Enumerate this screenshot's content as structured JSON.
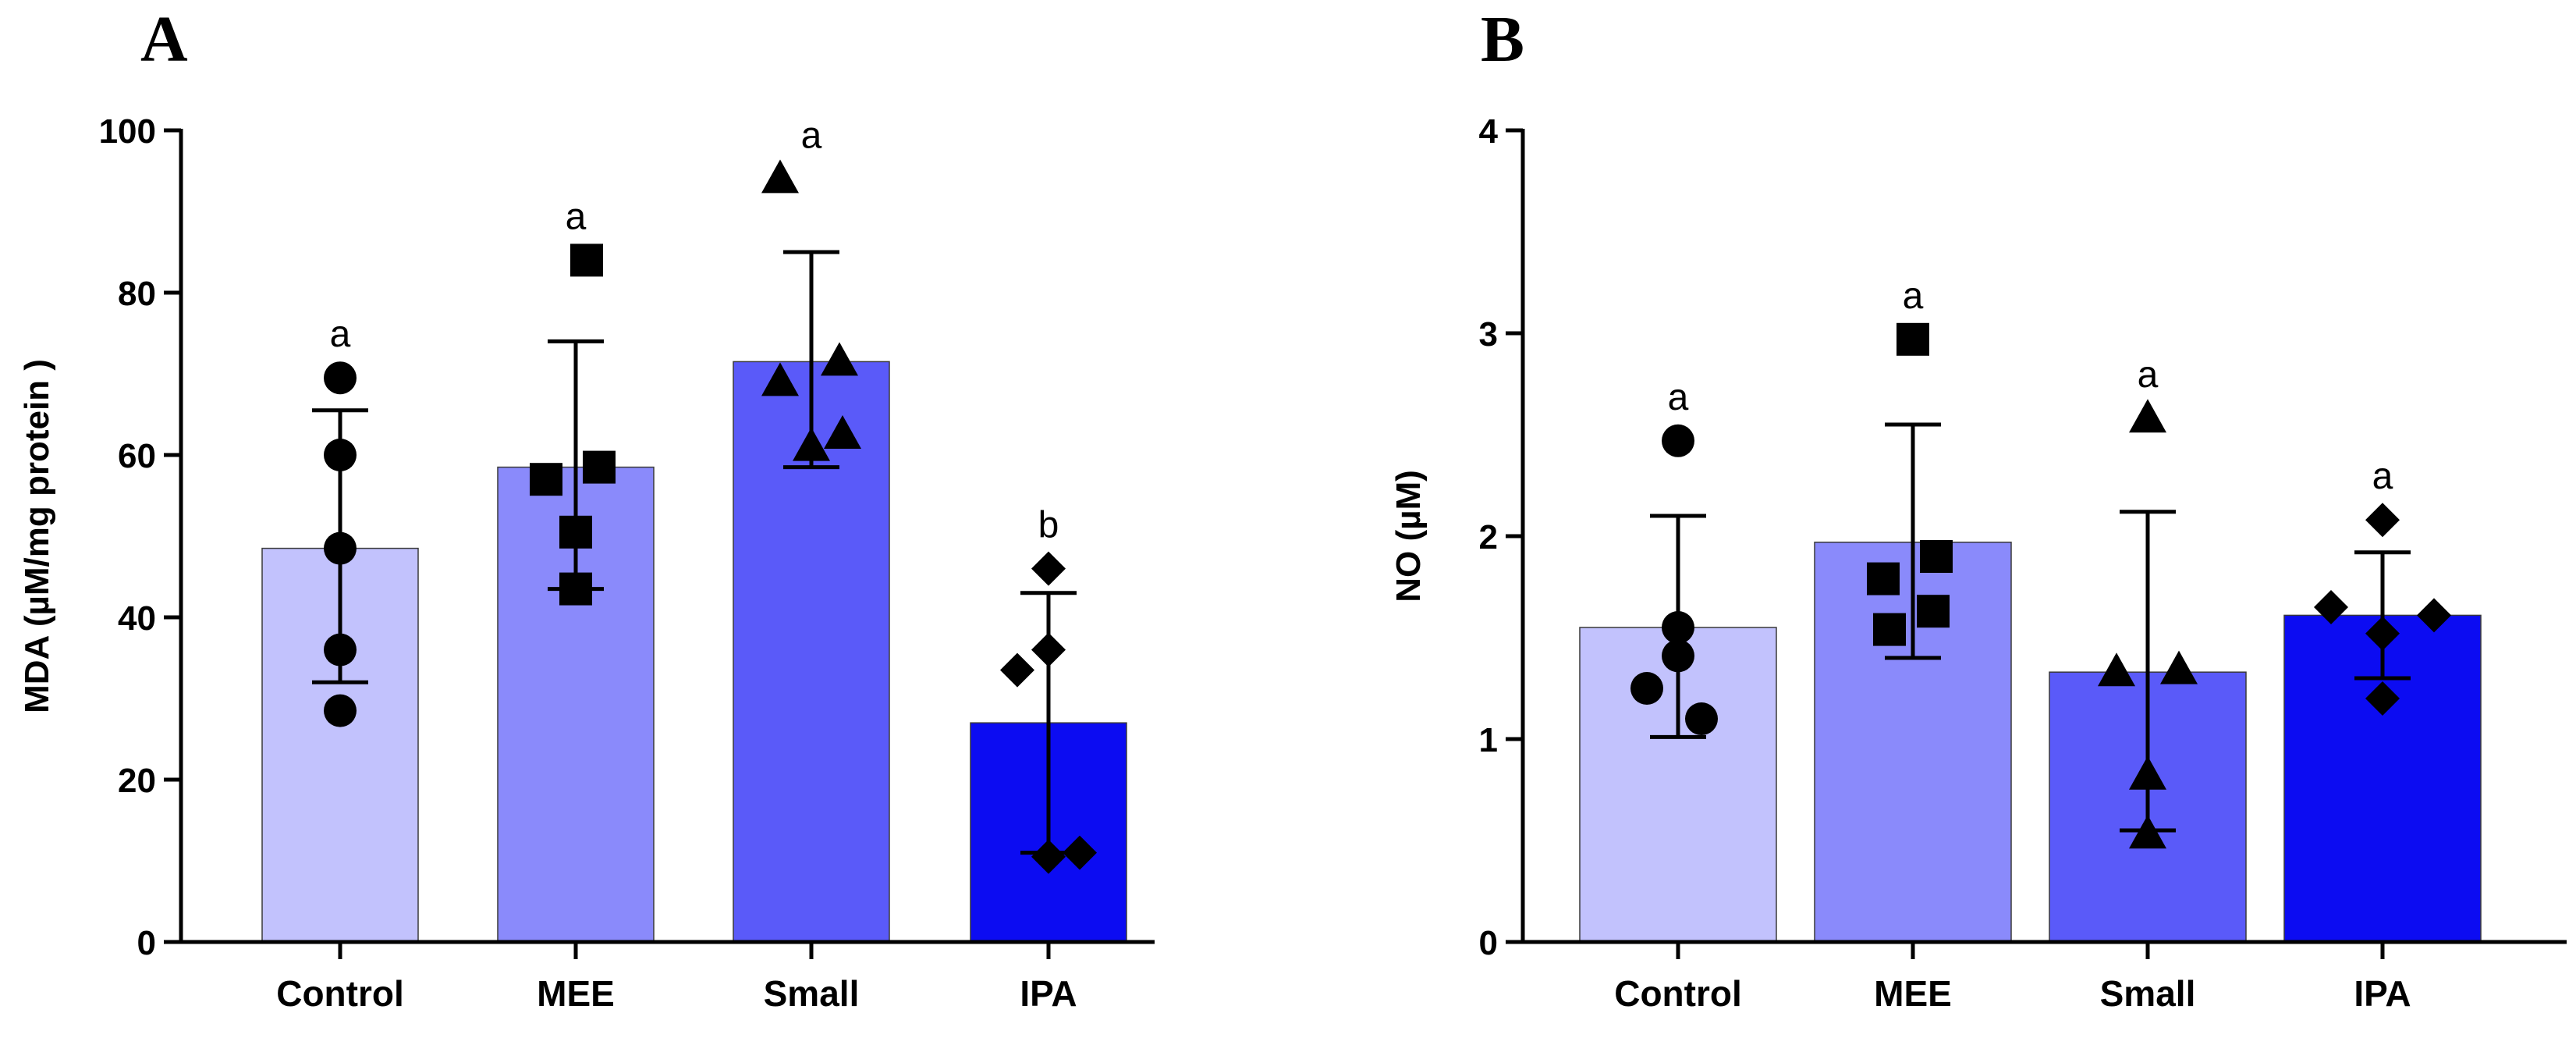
{
  "chart_data": [
    {
      "type": "bar",
      "panel_label": "A",
      "ylabel": "MDA (µM/mg protein )",
      "xlabel": "",
      "ylim": [
        0,
        100
      ],
      "yticks": [
        0,
        20,
        40,
        60,
        80,
        100
      ],
      "categories": [
        "Control",
        "MEE",
        "Small",
        "IPA"
      ],
      "values": [
        48.5,
        58.5,
        71.5,
        27
      ],
      "error_low": [
        32,
        43.5,
        58.5,
        11
      ],
      "error_high": [
        65.5,
        74,
        85,
        43
      ],
      "significance": [
        "a",
        "a",
        "a",
        "b"
      ],
      "markers": [
        "circle",
        "square",
        "triangle",
        "diamond"
      ],
      "points": [
        [
          69.5,
          60,
          48.5,
          36,
          28.5
        ],
        [
          84,
          58.5,
          57,
          50.5,
          43.5
        ],
        [
          94,
          71.5,
          69,
          62.5,
          61
        ],
        [
          46,
          36,
          33.5,
          11,
          10.5
        ]
      ],
      "bar_colors": [
        "#c2c2fd",
        "#8a8afb",
        "#5a5af9",
        "#0c0cf2"
      ],
      "grid": false
    },
    {
      "type": "bar",
      "panel_label": "B",
      "ylabel": "NO (µM)",
      "xlabel": "",
      "ylim": [
        0,
        4
      ],
      "yticks": [
        0,
        1,
        2,
        3,
        4
      ],
      "categories": [
        "Control",
        "MEE",
        "Small",
        "IPA"
      ],
      "values": [
        1.55,
        1.97,
        1.33,
        1.61
      ],
      "error_low": [
        1.01,
        1.4,
        0.55,
        1.3
      ],
      "error_high": [
        2.1,
        2.55,
        2.12,
        1.92
      ],
      "significance": [
        "a",
        "a",
        "a",
        "a"
      ],
      "markers": [
        "circle",
        "square",
        "triangle",
        "diamond"
      ],
      "points": [
        [
          2.47,
          1.55,
          1.41,
          1.25,
          1.1
        ],
        [
          2.97,
          1.9,
          1.79,
          1.63,
          1.54
        ],
        [
          2.58,
          1.34,
          1.33,
          0.82,
          0.53
        ],
        [
          2.08,
          1.65,
          1.61,
          1.52,
          1.2
        ]
      ],
      "bar_colors": [
        "#c2c2fd",
        "#8a8afb",
        "#5a5af9",
        "#0c0cf2"
      ],
      "grid": false
    }
  ]
}
